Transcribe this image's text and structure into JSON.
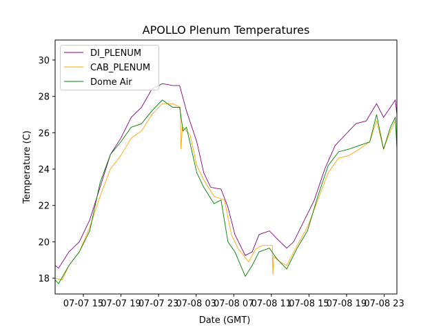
{
  "chart_data": {
    "type": "line",
    "title": "APOLLO Plenum Temperatures",
    "xlabel": "Date (GMT)",
    "ylabel": "Temperature (C)",
    "x_units": "hours since 07-07 00:00 GMT",
    "xlim": [
      12,
      48.35
    ],
    "ylim": [
      17.13,
      31.1
    ],
    "grid": false,
    "legend_position": "top-left",
    "xticks": [
      {
        "value": 15,
        "label": "07-07 15"
      },
      {
        "value": 19,
        "label": "07-07 19"
      },
      {
        "value": 23,
        "label": "07-07 23"
      },
      {
        "value": 27,
        "label": "07-08 03"
      },
      {
        "value": 31,
        "label": "07-08 07"
      },
      {
        "value": 35,
        "label": "07-08 11"
      },
      {
        "value": 39,
        "label": "07-08 15"
      },
      {
        "value": 43,
        "label": "07-08 19"
      },
      {
        "value": 47,
        "label": "07-08 23"
      }
    ],
    "yticks": [
      {
        "value": 18,
        "label": "18"
      },
      {
        "value": 20,
        "label": "20"
      },
      {
        "value": 22,
        "label": "22"
      },
      {
        "value": 24,
        "label": "24"
      },
      {
        "value": 26,
        "label": "26"
      },
      {
        "value": 28,
        "label": "28"
      },
      {
        "value": 30,
        "label": "30"
      }
    ],
    "series": [
      {
        "name": "DI_PLENUM",
        "color": "#800080",
        "x": [
          12,
          12.37,
          13.47,
          14.57,
          15.68,
          16.78,
          17.88,
          18.99,
          20.09,
          21.19,
          22.29,
          23.4,
          24.5,
          25.24,
          25.97,
          27.07,
          27.81,
          28.54,
          29.65,
          30.38,
          31.12,
          32.22,
          32.96,
          33.69,
          34.79,
          35.53,
          36.63,
          37.37,
          38.47,
          39.57,
          40.68,
          41.78,
          42.88,
          43.99,
          45.09,
          46.19,
          46.93,
          47.66,
          48.18,
          48.35
        ],
        "y": [
          18.7,
          18.55,
          19.45,
          20.0,
          21.2,
          23.0,
          24.8,
          25.7,
          26.85,
          27.4,
          28.4,
          28.7,
          28.6,
          28.6,
          27.2,
          25.5,
          23.8,
          23.0,
          22.9,
          21.9,
          20.4,
          19.25,
          19.45,
          20.4,
          20.6,
          20.2,
          19.65,
          20.0,
          21.15,
          22.3,
          24.0,
          25.3,
          25.9,
          26.5,
          26.65,
          27.6,
          26.85,
          27.4,
          27.8,
          27.0
        ]
      },
      {
        "name": "CAB_PLENUM",
        "color": "#ffa500",
        "x": [
          12,
          12.74,
          13.47,
          14.57,
          15.68,
          16.78,
          17.88,
          18.99,
          20.09,
          21.19,
          22.29,
          23.4,
          24.5,
          25.31,
          25.38,
          25.53,
          25.6,
          26.34,
          27.07,
          27.81,
          28.91,
          30.01,
          30.75,
          31.49,
          32.59,
          33.32,
          34.06,
          35.09,
          35.16,
          35.24,
          35.9,
          36.63,
          37.74,
          38.84,
          39.94,
          41.04,
          42.15,
          43.25,
          44.35,
          45.46,
          46.19,
          46.93,
          47.66,
          48.18,
          48.35
        ],
        "y": [
          18.0,
          17.9,
          18.7,
          19.45,
          20.8,
          22.5,
          24.0,
          24.75,
          25.7,
          26.1,
          27.0,
          27.6,
          27.6,
          27.4,
          25.1,
          26.3,
          26.3,
          25.9,
          24.2,
          23.4,
          22.5,
          22.3,
          20.4,
          19.6,
          18.9,
          19.6,
          19.8,
          19.8,
          18.2,
          19.2,
          18.9,
          18.7,
          19.8,
          20.8,
          22.3,
          23.8,
          24.6,
          24.75,
          25.1,
          25.5,
          26.65,
          25.1,
          26.1,
          26.65,
          25.7
        ]
      },
      {
        "name": "Dome Air",
        "color": "#008000",
        "x": [
          12,
          12.37,
          13.47,
          14.57,
          15.68,
          16.78,
          17.88,
          18.99,
          20.09,
          21.19,
          22.29,
          23.4,
          24.5,
          25.24,
          25.6,
          25.97,
          27.07,
          27.81,
          28.91,
          29.65,
          30.38,
          31.12,
          32.22,
          32.96,
          33.69,
          34.79,
          35.53,
          36.63,
          37.74,
          38.84,
          39.94,
          41.04,
          42.15,
          43.25,
          44.35,
          45.46,
          46.19,
          46.93,
          47.66,
          48.18,
          48.35
        ],
        "y": [
          17.9,
          17.7,
          18.7,
          19.45,
          20.6,
          23.25,
          24.8,
          25.5,
          26.3,
          26.5,
          27.2,
          27.8,
          27.4,
          27.4,
          26.1,
          26.3,
          23.8,
          23.0,
          22.1,
          22.3,
          20.0,
          19.45,
          18.1,
          18.7,
          19.45,
          19.65,
          19.1,
          18.5,
          19.65,
          20.6,
          22.5,
          24.2,
          24.95,
          25.1,
          25.3,
          25.5,
          27.0,
          25.1,
          26.3,
          26.85,
          25.1
        ]
      }
    ]
  }
}
